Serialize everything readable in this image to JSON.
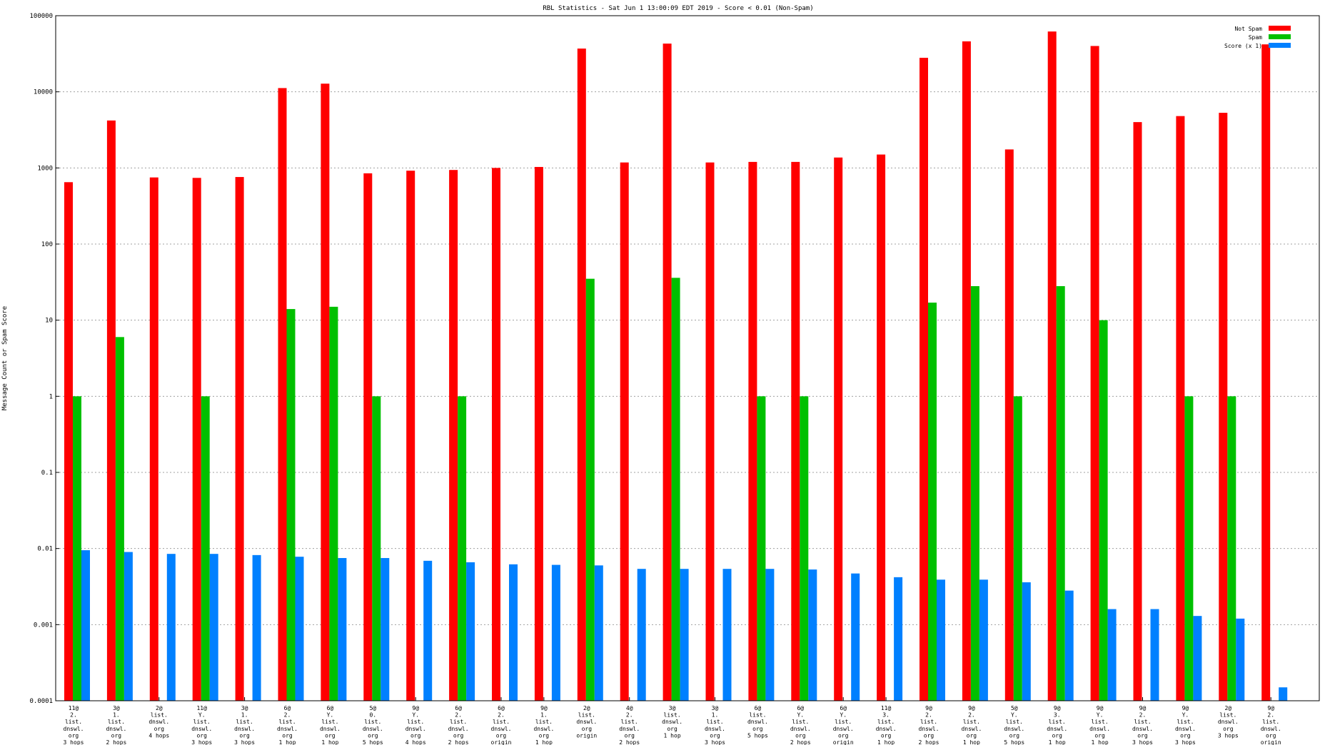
{
  "chart_data": {
    "type": "bar",
    "title": "RBL Statistics - Sat Jun  1 13:00:09 EDT 2019 - Score < 0.01 (Non-Spam)",
    "ylabel": "Message Count or Spam Score",
    "yscale": "log",
    "ylim": [
      0.0001,
      100000
    ],
    "yticks": [
      "100000",
      "10000",
      "1000",
      "100",
      "10",
      "1",
      "0.1",
      "0.01",
      "0.001",
      "0.0001"
    ],
    "grid": true,
    "legend_position": "top-right",
    "categories": [
      [
        "11@",
        "2.",
        "list.",
        "dnswl.",
        "org",
        "3 hops"
      ],
      [
        "3@",
        "1.",
        "list.",
        "dnswl.",
        "org",
        "2 hops"
      ],
      [
        "2@",
        "list.",
        "dnswl.",
        "org",
        "4 hops"
      ],
      [
        "11@",
        "Y.",
        "list.",
        "dnswl.",
        "org",
        "3 hops"
      ],
      [
        "3@",
        "1.",
        "list.",
        "dnswl.",
        "org",
        "3 hops"
      ],
      [
        "6@",
        "2.",
        "list.",
        "dnswl.",
        "org",
        "1 hop"
      ],
      [
        "6@",
        "Y.",
        "list.",
        "dnswl.",
        "org",
        "1 hop"
      ],
      [
        "5@",
        "0.",
        "list.",
        "dnswl.",
        "org",
        "5 hops"
      ],
      [
        "9@",
        "Y.",
        "list.",
        "dnswl.",
        "org",
        "4 hops"
      ],
      [
        "6@",
        "2.",
        "list.",
        "dnswl.",
        "org",
        "2 hops"
      ],
      [
        "6@",
        "2.",
        "list.",
        "dnswl.",
        "org",
        "origin"
      ],
      [
        "9@",
        "1.",
        "list.",
        "dnswl.",
        "org",
        "1 hop"
      ],
      [
        "2@",
        "list.",
        "dnswl.",
        "org",
        "origin"
      ],
      [
        "4@",
        "2.",
        "list.",
        "dnswl.",
        "org",
        "2 hops"
      ],
      [
        "3@",
        "list.",
        "dnswl.",
        "org",
        "1 hop"
      ],
      [
        "3@",
        "1.",
        "list.",
        "dnswl.",
        "org",
        "3 hops"
      ],
      [
        "6@",
        "list.",
        "dnswl.",
        "org",
        "5 hops"
      ],
      [
        "6@",
        "Y.",
        "list.",
        "dnswl.",
        "org",
        "2 hops"
      ],
      [
        "6@",
        "Y.",
        "list.",
        "dnswl.",
        "org",
        "origin"
      ],
      [
        "11@",
        "3.",
        "list.",
        "dnswl.",
        "org",
        "1 hop"
      ],
      [
        "9@",
        "2.",
        "list.",
        "dnswl.",
        "org",
        "2 hops"
      ],
      [
        "9@",
        "2.",
        "list.",
        "dnswl.",
        "org",
        "1 hop"
      ],
      [
        "5@",
        "Y.",
        "list.",
        "dnswl.",
        "org",
        "5 hops"
      ],
      [
        "9@",
        "3.",
        "list.",
        "dnswl.",
        "org",
        "1 hop"
      ],
      [
        "9@",
        "Y.",
        "list.",
        "dnswl.",
        "org",
        "1 hop"
      ],
      [
        "9@",
        "2.",
        "list.",
        "dnswl.",
        "org",
        "3 hops"
      ],
      [
        "9@",
        "Y.",
        "list.",
        "dnswl.",
        "org",
        "3 hops"
      ],
      [
        "2@",
        "list.",
        "dnswl.",
        "org",
        "3 hops"
      ],
      [
        "9@",
        "2.",
        "list.",
        "dnswl.",
        "org",
        "origin"
      ]
    ],
    "series": [
      {
        "name": "Not Spam",
        "color": "#ff0000",
        "values": [
          650,
          4200,
          750,
          740,
          760,
          11200,
          12800,
          850,
          920,
          940,
          1000,
          1030,
          37000,
          1180,
          43000,
          1180,
          1200,
          1200,
          1370,
          1500,
          28000,
          46000,
          1750,
          62000,
          40000,
          4000,
          4800,
          5300,
          42000
        ]
      },
      {
        "name": "Spam",
        "color": "#00c000",
        "values": [
          1,
          6,
          null,
          1,
          null,
          14,
          15,
          1,
          null,
          1,
          null,
          null,
          35,
          null,
          36,
          null,
          1,
          1,
          null,
          null,
          17,
          28,
          1,
          28,
          10,
          null,
          1,
          1,
          null
        ]
      },
      {
        "name": "Score (x 1)",
        "color": "#0080ff",
        "values": [
          0.0095,
          0.009,
          0.0085,
          0.0085,
          0.0082,
          0.0078,
          0.0075,
          0.0075,
          0.0069,
          0.0066,
          0.0062,
          0.0061,
          0.006,
          0.0054,
          0.0054,
          0.0054,
          0.0054,
          0.0053,
          0.0047,
          0.0042,
          0.0039,
          0.0039,
          0.0036,
          0.0028,
          0.0016,
          0.0016,
          0.0013,
          0.0012,
          0.00015
        ]
      }
    ]
  }
}
